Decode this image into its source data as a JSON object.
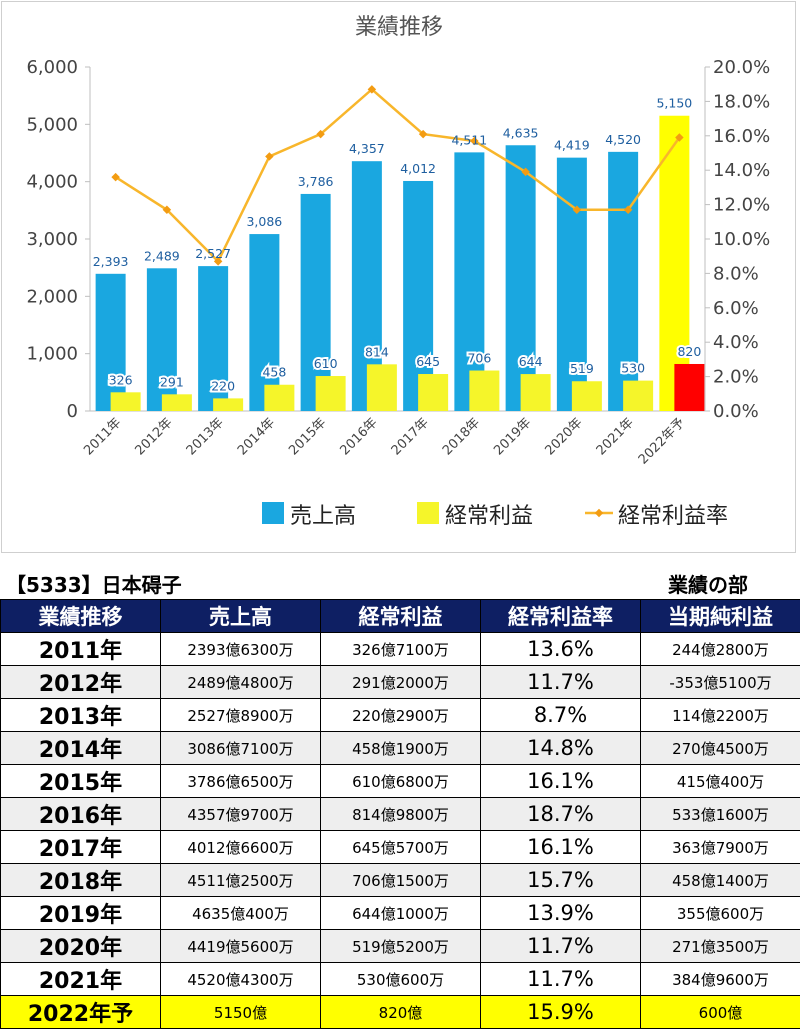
{
  "chart_data": {
    "type": "bar",
    "title": "業績推移",
    "categories": [
      "2011年",
      "2012年",
      "2013年",
      "2014年",
      "2015年",
      "2016年",
      "2017年",
      "2018年",
      "2019年",
      "2020年",
      "2021年",
      "2022年予"
    ],
    "series": [
      {
        "name": "売上高",
        "type": "bar",
        "axis": "left",
        "color": "#1aa7e0",
        "values": [
          2393,
          2489,
          2527,
          3086,
          3786,
          4357,
          4012,
          4511,
          4635,
          4419,
          4520,
          5150
        ],
        "labels": [
          "2,393",
          "2,489",
          "2,527",
          "3,086",
          "3,786",
          "4,357",
          "4,012",
          "4,511",
          "4,635",
          "4,419",
          "4,520",
          "5,150"
        ]
      },
      {
        "name": "経常利益",
        "type": "bar",
        "axis": "left",
        "color": "#f5f52a",
        "values": [
          326,
          291,
          220,
          458,
          610,
          814,
          645,
          706,
          644,
          519,
          530,
          820
        ],
        "labels": [
          "326",
          "291",
          "220",
          "458",
          "610",
          "814",
          "645",
          "706",
          "644",
          "519",
          "530",
          "820"
        ]
      },
      {
        "name": "経常利益率",
        "type": "line",
        "axis": "right",
        "color": "#f8b62b",
        "values": [
          13.6,
          11.7,
          8.7,
          14.8,
          16.1,
          18.7,
          16.1,
          15.7,
          13.9,
          11.7,
          11.7,
          15.9
        ]
      }
    ],
    "forecast_colors": {
      "売上高": "#ffff00",
      "経常利益": "#ff0000"
    },
    "y_left": {
      "ylim": [
        0,
        6000
      ],
      "ticks": [
        "0",
        "1,000",
        "2,000",
        "3,000",
        "4,000",
        "5,000",
        "6,000"
      ]
    },
    "y_right": {
      "ylim": [
        0,
        20
      ],
      "ticks": [
        "0.0%",
        "2.0%",
        "4.0%",
        "6.0%",
        "8.0%",
        "10.0%",
        "12.0%",
        "14.0%",
        "16.0%",
        "18.0%",
        "20.0%"
      ]
    },
    "grid": false,
    "legend_position": "bottom-right"
  },
  "company_title": "【5333】日本碍子",
  "section_label": "業績の部",
  "table": {
    "headers": [
      "業績推移",
      "売上高",
      "経常利益",
      "経常利益率",
      "当期純利益"
    ],
    "rows": [
      {
        "year": "2011年",
        "sales": "2393億6300万",
        "ordinary": "326億7100万",
        "rate": "13.6%",
        "net": "244億2800万"
      },
      {
        "year": "2012年",
        "sales": "2489億4800万",
        "ordinary": "291億2000万",
        "rate": "11.7%",
        "net": "-353億5100万"
      },
      {
        "year": "2013年",
        "sales": "2527億8900万",
        "ordinary": "220億2900万",
        "rate": "8.7%",
        "net": "114億2200万"
      },
      {
        "year": "2014年",
        "sales": "3086億7100万",
        "ordinary": "458億1900万",
        "rate": "14.8%",
        "net": "270億4500万"
      },
      {
        "year": "2015年",
        "sales": "3786億6500万",
        "ordinary": "610億6800万",
        "rate": "16.1%",
        "net": "415億400万"
      },
      {
        "year": "2016年",
        "sales": "4357億9700万",
        "ordinary": "814億9800万",
        "rate": "18.7%",
        "net": "533億1600万"
      },
      {
        "year": "2017年",
        "sales": "4012億6600万",
        "ordinary": "645億5700万",
        "rate": "16.1%",
        "net": "363億7900万"
      },
      {
        "year": "2018年",
        "sales": "4511億2500万",
        "ordinary": "706億1500万",
        "rate": "15.7%",
        "net": "458億1400万"
      },
      {
        "year": "2019年",
        "sales": "4635億400万",
        "ordinary": "644億1000万",
        "rate": "13.9%",
        "net": "355億600万"
      },
      {
        "year": "2020年",
        "sales": "4419億5600万",
        "ordinary": "519億5200万",
        "rate": "11.7%",
        "net": "271億3500万"
      },
      {
        "year": "2021年",
        "sales": "4520億4300万",
        "ordinary": "530億600万",
        "rate": "11.7%",
        "net": "384億9600万"
      },
      {
        "year": "2022年予",
        "sales": "5150億",
        "ordinary": "820億",
        "rate": "15.9%",
        "net": "600億"
      }
    ]
  }
}
